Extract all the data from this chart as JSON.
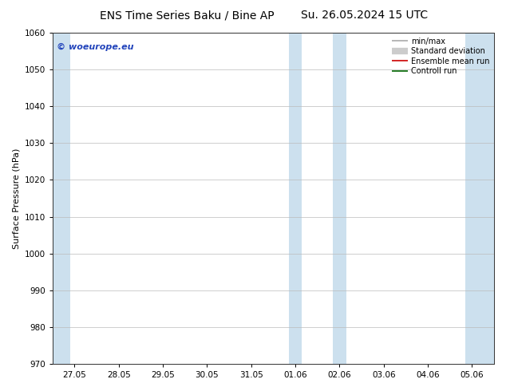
{
  "title_left": "ENS Time Series Baku / Bine AP",
  "title_right": "Su. 26.05.2024 15 UTC",
  "ylabel": "Surface Pressure (hPa)",
  "ylim": [
    970,
    1060
  ],
  "yticks": [
    970,
    980,
    990,
    1000,
    1010,
    1020,
    1030,
    1040,
    1050,
    1060
  ],
  "xtick_labels": [
    "27.05",
    "28.05",
    "29.05",
    "30.05",
    "31.05",
    "01.06",
    "02.06",
    "03.06",
    "04.06",
    "05.06"
  ],
  "xtick_positions": [
    0,
    1,
    2,
    3,
    4,
    5,
    6,
    7,
    8,
    9
  ],
  "xlim": [
    -0.5,
    9.5
  ],
  "shaded_bands": [
    {
      "x_start": -0.5,
      "x_end": -0.1,
      "color": "#cce0ee"
    },
    {
      "x_start": 4.85,
      "x_end": 5.15,
      "color": "#cce0ee"
    },
    {
      "x_start": 5.85,
      "x_end": 6.15,
      "color": "#cce0ee"
    },
    {
      "x_start": 8.85,
      "x_end": 9.15,
      "color": "#cce0ee"
    },
    {
      "x_start": 9.15,
      "x_end": 9.5,
      "color": "#cce0ee"
    }
  ],
  "watermark_text": "© woeurope.eu",
  "watermark_color": "#2244bb",
  "legend_entries": [
    {
      "label": "min/max",
      "color": "#aaaaaa",
      "linewidth": 1.2,
      "linestyle": "-",
      "thick": false
    },
    {
      "label": "Standard deviation",
      "color": "#cccccc",
      "linewidth": 6,
      "linestyle": "-",
      "thick": true
    },
    {
      "label": "Ensemble mean run",
      "color": "#cc0000",
      "linewidth": 1.2,
      "linestyle": "-",
      "thick": false
    },
    {
      "label": "Controll run",
      "color": "#006600",
      "linewidth": 1.2,
      "linestyle": "-",
      "thick": false
    }
  ],
  "bg_color": "#ffffff",
  "grid_color": "#bbbbbb",
  "title_fontsize": 10,
  "ylabel_fontsize": 8,
  "tick_fontsize": 7.5,
  "watermark_fontsize": 8,
  "legend_fontsize": 7
}
